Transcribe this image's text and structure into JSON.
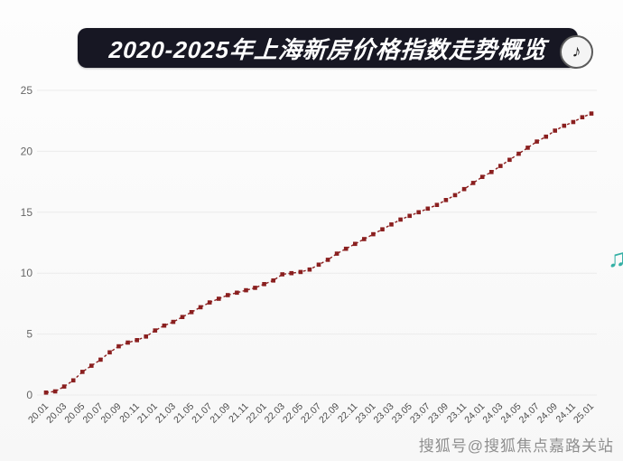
{
  "page": {
    "watermark": "搜狐号@搜狐焦点嘉路关站"
  },
  "header": {
    "title": "2020-2025年上海新房价格指数走势概览",
    "banner_bg": "#171723",
    "title_color": "#ffffff"
  },
  "icons": {
    "music_badge": "♪",
    "music_note_right": "♫"
  },
  "chart_data": {
    "type": "scatter",
    "title": "2020-2025年上海新房价格指数走势概览",
    "x": [
      "20.01",
      "20.02",
      "20.03",
      "20.04",
      "20.05",
      "20.06",
      "20.07",
      "20.08",
      "20.09",
      "20.10",
      "20.11",
      "20.12",
      "21.01",
      "21.02",
      "21.03",
      "21.04",
      "21.05",
      "21.06",
      "21.07",
      "21.08",
      "21.09",
      "21.10",
      "21.11",
      "21.12",
      "22.01",
      "22.02",
      "22.03",
      "22.04",
      "22.05",
      "22.06",
      "22.07",
      "22.08",
      "22.09",
      "22.10",
      "22.11",
      "22.12",
      "23.01",
      "23.02",
      "23.03",
      "23.04",
      "23.05",
      "23.06",
      "23.07",
      "23.08",
      "23.09",
      "23.10",
      "23.11",
      "23.12",
      "24.01",
      "24.02",
      "24.03",
      "24.04",
      "24.05",
      "24.06",
      "24.07",
      "24.08",
      "24.09",
      "24.10",
      "24.11",
      "24.12",
      "25.01"
    ],
    "values": [
      0.2,
      0.3,
      0.7,
      1.2,
      1.9,
      2.4,
      2.9,
      3.5,
      4.0,
      4.3,
      4.5,
      4.8,
      5.3,
      5.7,
      6.0,
      6.4,
      6.8,
      7.2,
      7.6,
      7.9,
      8.2,
      8.4,
      8.6,
      8.8,
      9.1,
      9.4,
      9.9,
      10.0,
      10.1,
      10.3,
      10.7,
      11.1,
      11.6,
      12.0,
      12.4,
      12.8,
      13.2,
      13.6,
      14.0,
      14.4,
      14.7,
      15.0,
      15.3,
      15.6,
      16.0,
      16.4,
      16.9,
      17.4,
      17.9,
      18.3,
      18.8,
      19.3,
      19.8,
      20.3,
      20.8,
      21.2,
      21.7,
      22.1,
      22.4,
      22.8,
      23.1
    ],
    "x_tick_step": 2,
    "yticks": [
      0,
      5,
      10,
      15,
      20,
      25
    ],
    "ylim": [
      0,
      25
    ],
    "xlabel": "",
    "ylabel": "",
    "grid": true,
    "legend": "none",
    "marker_color": "#8a1f1f",
    "grid_color": "#ebebeb",
    "line_style": "dashed"
  }
}
